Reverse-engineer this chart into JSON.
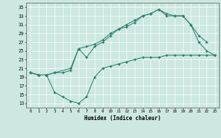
{
  "xlabel": "Humidex (Indice chaleur)",
  "bg_color": "#cce8e0",
  "line_color": "#2a7a6a",
  "xlim": [
    -0.5,
    23.5
  ],
  "ylim": [
    12,
    36
  ],
  "xticks": [
    0,
    1,
    2,
    3,
    4,
    5,
    6,
    7,
    8,
    9,
    10,
    11,
    12,
    13,
    14,
    15,
    16,
    17,
    18,
    19,
    20,
    21,
    22,
    23
  ],
  "yticks": [
    13,
    15,
    17,
    19,
    21,
    23,
    25,
    27,
    29,
    31,
    33,
    35
  ],
  "line1_x": [
    0,
    1,
    2,
    3,
    4,
    5,
    6,
    7,
    8,
    9,
    10,
    11,
    12,
    13,
    14,
    15,
    16,
    17,
    18,
    19,
    20,
    21,
    22,
    23
  ],
  "line1_y": [
    20,
    19.5,
    19.5,
    20,
    20,
    20.5,
    25.5,
    26,
    26.5,
    27.5,
    29,
    30,
    31,
    32,
    33,
    33.5,
    34.5,
    33.5,
    33,
    33,
    31,
    27,
    25,
    24
  ],
  "line2_x": [
    0,
    1,
    2,
    3,
    5,
    6,
    7,
    8,
    9,
    10,
    11,
    12,
    13,
    14,
    15,
    16,
    17,
    18,
    19,
    20,
    21,
    22
  ],
  "line2_y": [
    20,
    19.5,
    19.5,
    20,
    21,
    25.5,
    23.5,
    26,
    27,
    28.5,
    30,
    30.5,
    31.5,
    33,
    33.5,
    34.5,
    33,
    33,
    33,
    31,
    28.5,
    27
  ],
  "line3_x": [
    0,
    1,
    2,
    3,
    4,
    5,
    6,
    7,
    8,
    9,
    10,
    11,
    12,
    13,
    14,
    15,
    16,
    17,
    18,
    19,
    20,
    21,
    22,
    23
  ],
  "line3_y": [
    20,
    19.5,
    19.5,
    15.5,
    14.5,
    13.5,
    13.0,
    14.5,
    19,
    21,
    21.5,
    22,
    22.5,
    23,
    23.5,
    23.5,
    23.5,
    24,
    24,
    24,
    24,
    24,
    24,
    24
  ]
}
